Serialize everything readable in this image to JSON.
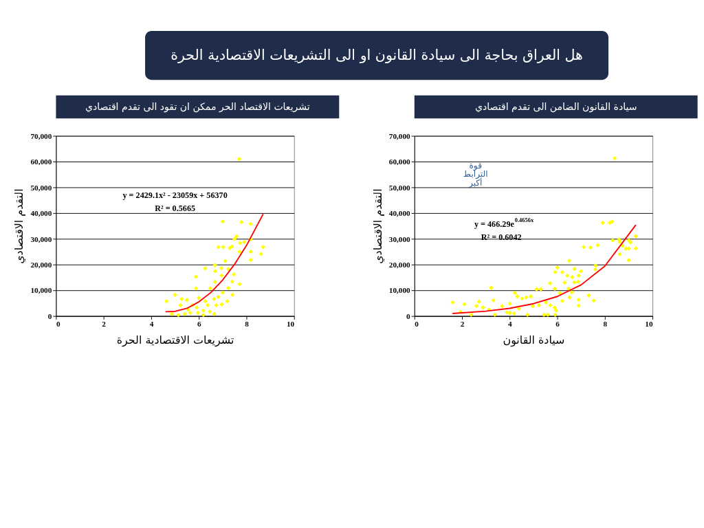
{
  "chart_data": [
    {
      "type": "scatter",
      "title": "هل العراق بحاجة الى سيادة القانون او الى التشريعات الاقتصادية الحرة",
      "subtitle": "تشريعات الاقتصاد الحر ممكن ان تقود الى تقدم اقتصادي",
      "xlabel": "تشريعات الاقتصادية الحرة",
      "ylabel": "التقدم الاقتصادي",
      "xlim": [
        0,
        10
      ],
      "xticks": [
        0,
        2,
        4,
        6,
        8,
        10
      ],
      "ylim": [
        0,
        70000
      ],
      "yticks": [
        {
          "value": 0,
          "label": "0"
        },
        {
          "value": 10000,
          "label": "10,000"
        },
        {
          "value": 20000,
          "label": "20,000"
        },
        {
          "value": 30000,
          "label": "30,000"
        },
        {
          "value": 40000,
          "label": "40,000"
        },
        {
          "value": 50000,
          "label": "50,000"
        },
        {
          "value": 60000,
          "label": "60,000"
        },
        {
          "value": 70000,
          "label": "70,000"
        }
      ],
      "grid": "y",
      "annotations": [
        "y = 2429.1x² - 23059x + 56370",
        "R² = 0.5665"
      ],
      "series": [
        {
          "marker": "diamond",
          "color": "#ffff00",
          "x": [
            7.7,
            7.0,
            7.79,
            8.18,
            7.59,
            7.5,
            7.91,
            8.18,
            7.73,
            6.82,
            7.02,
            7.3,
            7.39,
            7.71,
            8.18,
            8.7,
            8.61,
            8.18,
            7.11,
            6.68,
            6.26,
            6.95,
            7.24,
            6.69,
            6.95,
            7.47,
            5.88,
            6.68,
            7.4,
            7.24,
            5.88,
            6.48,
            7.71,
            7.0,
            7.41,
            5.0,
            4.64,
            5.28,
            5.5,
            6.0,
            6.27,
            6.64,
            6.82,
            7.19,
            6.96,
            5.23,
            5.73,
            5.91,
            6.37,
            6.19,
            4.87,
            5.14,
            5.41,
            5.64,
            5.96,
            6.19,
            6.46,
            6.64,
            5.55,
            6.73
          ],
          "values": [
            61000,
            36750,
            36500,
            35750,
            30900,
            29900,
            28750,
            29900,
            28350,
            26800,
            26800,
            26400,
            27000,
            25000,
            25000,
            26800,
            24100,
            21800,
            21400,
            19750,
            18500,
            18600,
            18250,
            17400,
            15750,
            16150,
            15300,
            13250,
            13400,
            10900,
            10750,
            10750,
            12400,
            9100,
            8250,
            8250,
            5750,
            6600,
            6200,
            7000,
            5750,
            6600,
            7400,
            5750,
            4500,
            4200,
            4200,
            3300,
            4200,
            2100,
            800,
            400,
            800,
            1250,
            1250,
            400,
            1700,
            800,
            2500,
            4200
          ]
        },
        {
          "type": "line",
          "marker": "none",
          "line_style": "solid",
          "color": "#ff0000",
          "x": [
            4.6,
            5,
            5.5,
            6,
            6.5,
            7,
            7.5,
            8,
            8.7
          ],
          "values": [
            1700,
            1800,
            3000,
            5500,
            9100,
            14000,
            20100,
            27400,
            39600
          ]
        }
      ]
    },
    {
      "type": "scatter",
      "title": "سيادة القانون الضامن الى تقدم اقتصادي",
      "xlabel": "سيادة القانون",
      "ylabel": "التقدم الاقتصادي",
      "xlim": [
        0,
        10
      ],
      "xticks": [
        0,
        2,
        4,
        6,
        8,
        10
      ],
      "ylim": [
        0,
        70000
      ],
      "yticks": [
        {
          "value": 0,
          "label": "0"
        },
        {
          "value": 10000,
          "label": "10,000"
        },
        {
          "value": 20000,
          "label": "20,000"
        },
        {
          "value": 30000,
          "label": "30,000"
        },
        {
          "value": 40000,
          "label": "40,000"
        },
        {
          "value": 50000,
          "label": "50,000"
        },
        {
          "value": 60000,
          "label": "60,000"
        },
        {
          "value": 70000,
          "label": "70,000"
        }
      ],
      "grid": "y",
      "annotations": [
        "قوة الترابط أكبر",
        "y = 466.29e$^{0.4656x}$",
        "R² = 0.6042"
      ],
      "series": [
        {
          "marker": "diamond",
          "color": "#ffff00",
          "x": [
            8.41,
            7.91,
            8.2,
            8.3,
            8.33,
            8.6,
            8.62,
            9.01,
            9.08,
            9.3,
            9.3,
            8.89,
            9.0,
            8.62,
            9.0,
            8.74,
            7.11,
            7.4,
            7.7,
            6.5,
            6.0,
            5.91,
            6.21,
            6.72,
            7.0,
            7.61,
            7.59,
            6.42,
            6.63,
            6.9,
            6.31,
            6.72,
            6.88,
            5.7,
            6.48,
            5.9,
            5.13,
            5.31,
            3.22,
            4.22,
            4.32,
            4.7,
            4.89,
            6.11,
            6.61,
            7.32,
            7.53,
            6.9,
            6.9,
            6.21,
            6.51,
            5.52,
            3.32,
            2.71,
            2.1,
            1.61,
            2.61,
            2.88,
            3.68,
            4.01,
            4.52,
            4.97,
            5.23,
            5.71,
            5.89,
            5.95,
            1.94,
            2.38,
            3.13,
            3.38,
            3.89,
            4.18,
            4.39,
            4.75,
            5.44,
            5.6,
            5.91,
            4.01
          ],
          "values": [
            61300,
            36200,
            36200,
            36700,
            29400,
            29700,
            28800,
            29400,
            28600,
            31000,
            26300,
            26200,
            26200,
            24000,
            21700,
            27300,
            26800,
            26600,
            27500,
            21500,
            18800,
            17100,
            17000,
            18300,
            17400,
            19600,
            18100,
            15700,
            15100,
            15700,
            13000,
            13100,
            13300,
            12700,
            10600,
            10600,
            10400,
            10400,
            11000,
            9000,
            7600,
            7200,
            7600,
            8900,
            9200,
            8000,
            6000,
            6300,
            4000,
            5800,
            7200,
            5300,
            6100,
            5600,
            4600,
            5300,
            3900,
            3300,
            3800,
            4800,
            6800,
            3800,
            4200,
            4200,
            3300,
            2200,
            1600,
            500,
            2500,
            500,
            1400,
            1000,
            2900,
            500,
            500,
            500,
            500,
            1200
          ]
        },
        {
          "type": "line",
          "marker": "none",
          "line_style": "solid",
          "color": "#ff0000",
          "x": [
            1.6,
            3,
            4,
            5,
            6,
            7,
            8,
            9.3
          ],
          "values": [
            1000,
            1900,
            3000,
            4800,
            7600,
            12100,
            19400,
            35400
          ]
        }
      ]
    }
  ]
}
